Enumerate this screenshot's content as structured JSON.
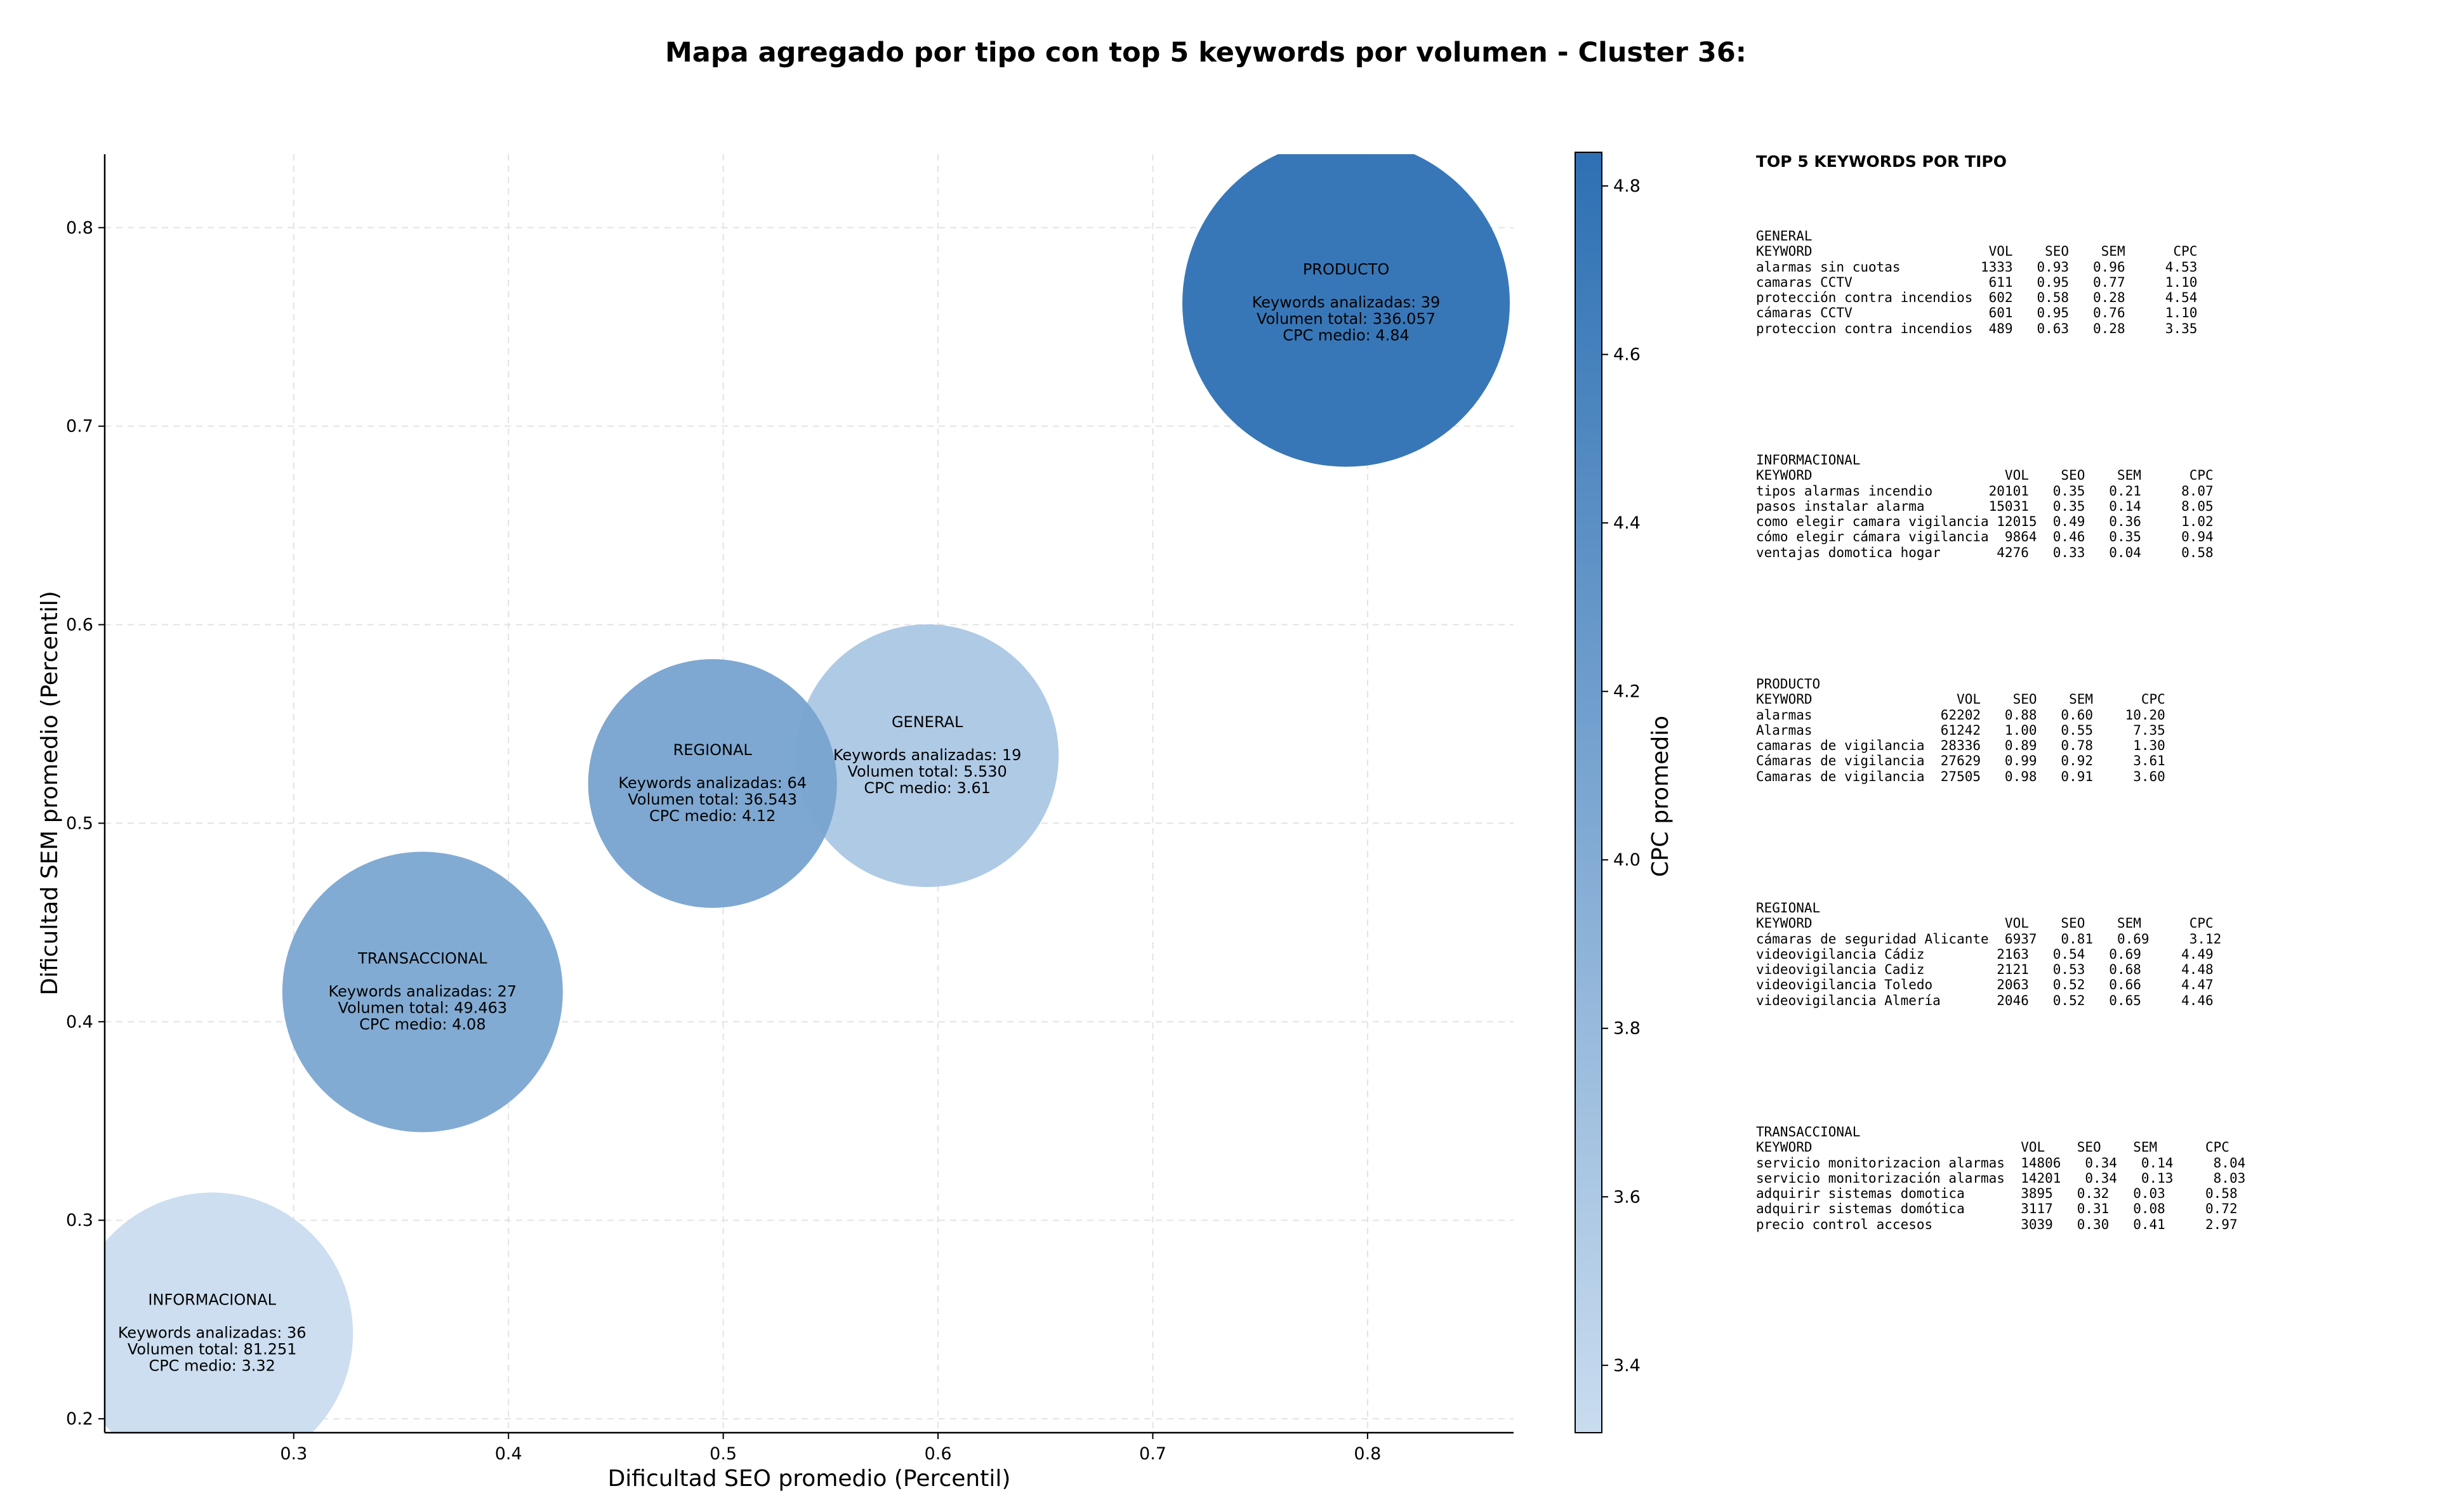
{
  "chart_data": {
    "type": "scatter",
    "title": "Mapa agregado por tipo con top 5 keywords por volumen - Cluster 36:",
    "xlabel": "Dificultad SEO promedio (Percentil)",
    "ylabel": "Dificultad SEM promedio (Percentil)",
    "xlim": [
      0.212,
      0.868
    ],
    "ylim": [
      0.193,
      0.837
    ],
    "xticks": [
      "0.3",
      "0.4",
      "0.5",
      "0.6",
      "0.7",
      "0.8"
    ],
    "yticks": [
      "0.2",
      "0.3",
      "0.4",
      "0.5",
      "0.6",
      "0.7",
      "0.8"
    ],
    "grid": true,
    "colorbar": {
      "label": "CPC promedio",
      "range": [
        3.32,
        4.84
      ],
      "ticks": [
        "3.4",
        "3.6",
        "3.8",
        "4.0",
        "4.2",
        "4.4",
        "4.6",
        "4.8"
      ],
      "color_low": "#c9dcef",
      "color_high": "#2d70b3"
    },
    "bubbles": [
      {
        "name": "PRODUCTO",
        "x": 0.79,
        "y": 0.762,
        "cpc": 4.84,
        "line1": "Keywords analizadas: 39",
        "line2": "Volumen total: 336.057",
        "line3": "CPC medio: 4.84"
      },
      {
        "name": "GENERAL",
        "x": 0.595,
        "y": 0.534,
        "cpc": 3.61,
        "line1": "Keywords analizadas: 19",
        "line2": "Volumen total: 5.530",
        "line3": "CPC medio: 3.61"
      },
      {
        "name": "REGIONAL",
        "x": 0.495,
        "y": 0.52,
        "cpc": 4.12,
        "line1": "Keywords analizadas: 64",
        "line2": "Volumen total: 36.543",
        "line3": "CPC medio: 4.12"
      },
      {
        "name": "TRANSACCIONAL",
        "x": 0.36,
        "y": 0.415,
        "cpc": 4.08,
        "line1": "Keywords analizadas: 27",
        "line2": "Volumen total: 49.463",
        "line3": "CPC medio: 4.08"
      },
      {
        "name": "INFORMACIONAL",
        "x": 0.262,
        "y": 0.243,
        "cpc": 3.32,
        "line1": "Keywords analizadas: 36",
        "line2": "Volumen total: 81.251",
        "line3": "CPC medio: 3.32"
      }
    ]
  },
  "tables": {
    "title": "TOP 5 KEYWORDS POR TIPO",
    "blocks": [
      {
        "text": "GENERAL\nKEYWORD                      VOL    SEO    SEM      CPC\nalarmas sin cuotas          1333   0.93   0.96     4.53\ncamaras CCTV                 611   0.95   0.77     1.10\nprotección contra incendios  602   0.58   0.28     4.54\ncámaras CCTV                 601   0.95   0.76     1.10\nproteccion contra incendios  489   0.63   0.28     3.35"
      },
      {
        "text": "INFORMACIONAL\nKEYWORD                        VOL    SEO    SEM      CPC\ntipos alarmas incendio       20101   0.35   0.21     8.07\npasos instalar alarma        15031   0.35   0.14     8.05\ncomo elegir camara vigilancia 12015  0.49   0.36     1.02\ncómo elegir cámara vigilancia  9864  0.46   0.35     0.94\nventajas domotica hogar       4276   0.33   0.04     0.58"
      },
      {
        "text": "PRODUCTO\nKEYWORD                  VOL    SEO    SEM      CPC\nalarmas                62202   0.88   0.60    10.20\nAlarmas                61242   1.00   0.55     7.35\ncamaras de vigilancia  28336   0.89   0.78     1.30\nCámaras de vigilancia  27629   0.99   0.92     3.61\nCamaras de vigilancia  27505   0.98   0.91     3.60"
      },
      {
        "text": "REGIONAL\nKEYWORD                        VOL    SEO    SEM      CPC\ncámaras de seguridad Alicante  6937   0.81   0.69     3.12\nvideovigilancia Cádiz         2163   0.54   0.69     4.49\nvideovigilancia Cadiz         2121   0.53   0.68     4.48\nvideovigilancia Toledo        2063   0.52   0.66     4.47\nvideovigilancia Almería       2046   0.52   0.65     4.46"
      },
      {
        "text": "TRANSACCIONAL\nKEYWORD                          VOL    SEO    SEM      CPC\nservicio monitorizacion alarmas  14806   0.34   0.14     8.04\nservicio monitorización alarmas  14201   0.34   0.13     8.03\nadquirir sistemas domotica       3895   0.32   0.03     0.58\nadquirir sistemas domótica       3117   0.31   0.08     0.72\nprecio control accesos           3039   0.30   0.41     2.97"
      }
    ]
  }
}
